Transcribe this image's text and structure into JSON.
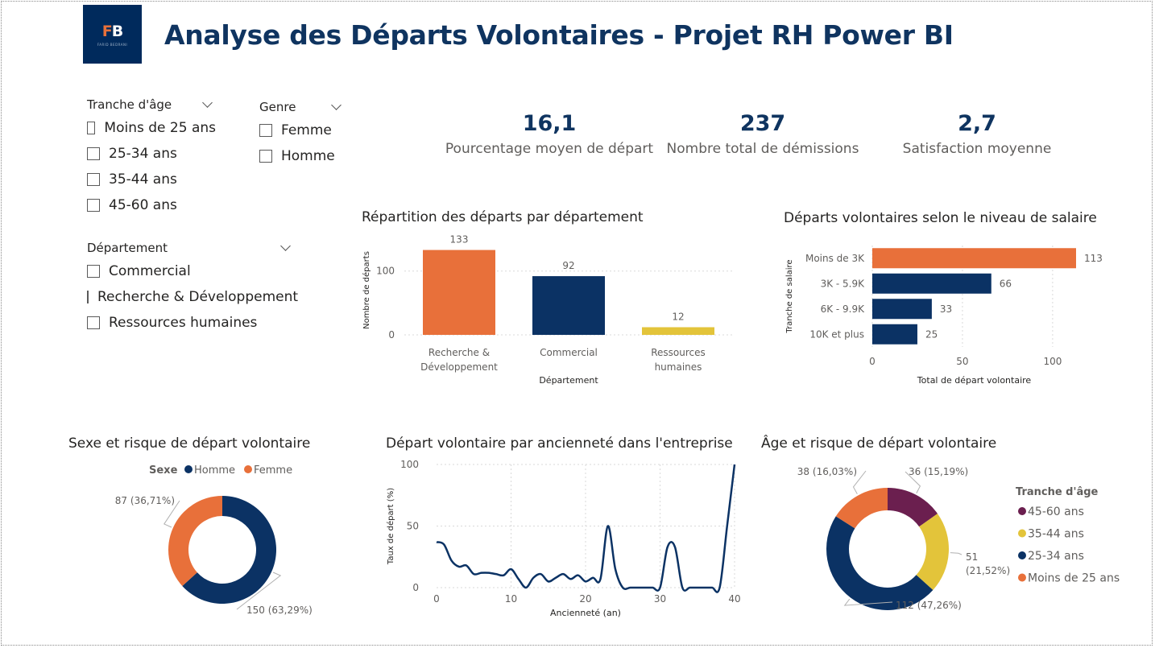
{
  "header": {
    "logo_text_f": "F",
    "logo_text_b": "B",
    "logo_sub": "FARID BEDRANI",
    "title": "Analyse des Départs Volontaires - Projet RH Power BI"
  },
  "slicers": {
    "age": {
      "label": "Tranche d'âge",
      "options": [
        "Moins de 25 ans",
        "25-34 ans",
        "35-44 ans",
        "45-60 ans"
      ]
    },
    "genre": {
      "label": "Genre",
      "options": [
        "Femme",
        "Homme"
      ]
    },
    "departement": {
      "label": "Département",
      "options": [
        "Commercial",
        "Recherche & Développement",
        "Ressources humaines"
      ]
    }
  },
  "kpis": [
    {
      "value": "16,1",
      "label": "Pourcentage moyen de départ"
    },
    {
      "value": "237",
      "label": "Nombre total de démissions"
    },
    {
      "value": "2,7",
      "label": "Satisfaction moyenne"
    }
  ],
  "colors": {
    "navy": "#0b3264",
    "orange": "#e8703a",
    "yellow": "#e3c43a",
    "purple": "#6b1f4f",
    "title_blue": "#0f3460"
  },
  "chart_data": [
    {
      "id": "dept",
      "type": "bar",
      "title": "Répartition des départs par département",
      "xlabel": "Département",
      "ylabel": "Nombre de départs",
      "categories": [
        "Recherche & Développement",
        "Commercial",
        "Ressources humaines"
      ],
      "category_lines": [
        [
          "Recherche &",
          "Développement"
        ],
        [
          "Commercial"
        ],
        [
          "Ressources",
          "humaines"
        ]
      ],
      "values": [
        133,
        92,
        12
      ],
      "bar_colors": [
        "#e8703a",
        "#0b3264",
        "#e3c43a"
      ],
      "ylim": [
        0,
        140
      ],
      "yticks": [
        0,
        100
      ],
      "grid": true
    },
    {
      "id": "salaire",
      "type": "bar",
      "orientation": "horizontal",
      "title": "Départs volontaires selon le niveau de salaire",
      "xlabel": "Total de départ volontaire",
      "ylabel": "Tranche de salaire",
      "categories": [
        "Moins de 3K",
        "3K - 5.9K",
        "6K - 9.9K",
        "10K et plus"
      ],
      "values": [
        113,
        66,
        33,
        25
      ],
      "bar_colors": [
        "#e8703a",
        "#0b3264",
        "#0b3264",
        "#0b3264"
      ],
      "xlim": [
        0,
        113
      ],
      "xticks": [
        0,
        50,
        100
      ],
      "grid": true
    },
    {
      "id": "sexe",
      "type": "pie",
      "donut": true,
      "title": "Sexe et risque de départ volontaire",
      "legend_title": "Sexe",
      "legend_position": "top",
      "slices": [
        {
          "name": "Homme",
          "value": 150,
          "label": "150 (63,29%)",
          "color": "#0b3264"
        },
        {
          "name": "Femme",
          "value": 87,
          "label": "87 (36,71%)",
          "color": "#e8703a"
        }
      ]
    },
    {
      "id": "anciennete",
      "type": "line",
      "title": "Départ volontaire par ancienneté dans l'entreprise",
      "xlabel": "Ancienneté (an)",
      "ylabel": "Taux de départ (%)",
      "xlim": [
        0,
        40
      ],
      "ylim": [
        0,
        100
      ],
      "xticks": [
        0,
        10,
        20,
        30,
        40
      ],
      "yticks": [
        0,
        50,
        100
      ],
      "grid": true,
      "x": [
        0,
        1,
        2,
        3,
        4,
        5,
        6,
        7,
        8,
        9,
        10,
        11,
        12,
        13,
        14,
        15,
        16,
        17,
        18,
        19,
        20,
        21,
        22,
        23,
        24,
        25,
        26,
        27,
        28,
        29,
        30,
        31,
        32,
        33,
        34,
        35,
        36,
        37,
        38,
        39,
        40
      ],
      "y": [
        37,
        35,
        22,
        17,
        18,
        11,
        12,
        12,
        11,
        10,
        15,
        7,
        0,
        8,
        11,
        5,
        8,
        11,
        7,
        10,
        5,
        8,
        7,
        50,
        15,
        0,
        0,
        0,
        0,
        0,
        0,
        33,
        33,
        0,
        0,
        0,
        0,
        0,
        0,
        50,
        100
      ]
    },
    {
      "id": "age",
      "type": "pie",
      "donut": true,
      "title": "Âge et risque de départ volontaire",
      "legend_title": "Tranche d'âge",
      "legend_position": "right",
      "slices": [
        {
          "name": "45-60 ans",
          "value": 36,
          "label": "36 (15,19%)",
          "color": "#6b1f4f"
        },
        {
          "name": "35-44 ans",
          "value": 51,
          "label": "51 (21,52%)",
          "color": "#e3c43a"
        },
        {
          "name": "25-34 ans",
          "value": 112,
          "label": "112 (47,26%)",
          "color": "#0b3264"
        },
        {
          "name": "Moins de 25 ans",
          "value": 38,
          "label": "38 (16,03%)",
          "color": "#e8703a"
        }
      ]
    }
  ]
}
